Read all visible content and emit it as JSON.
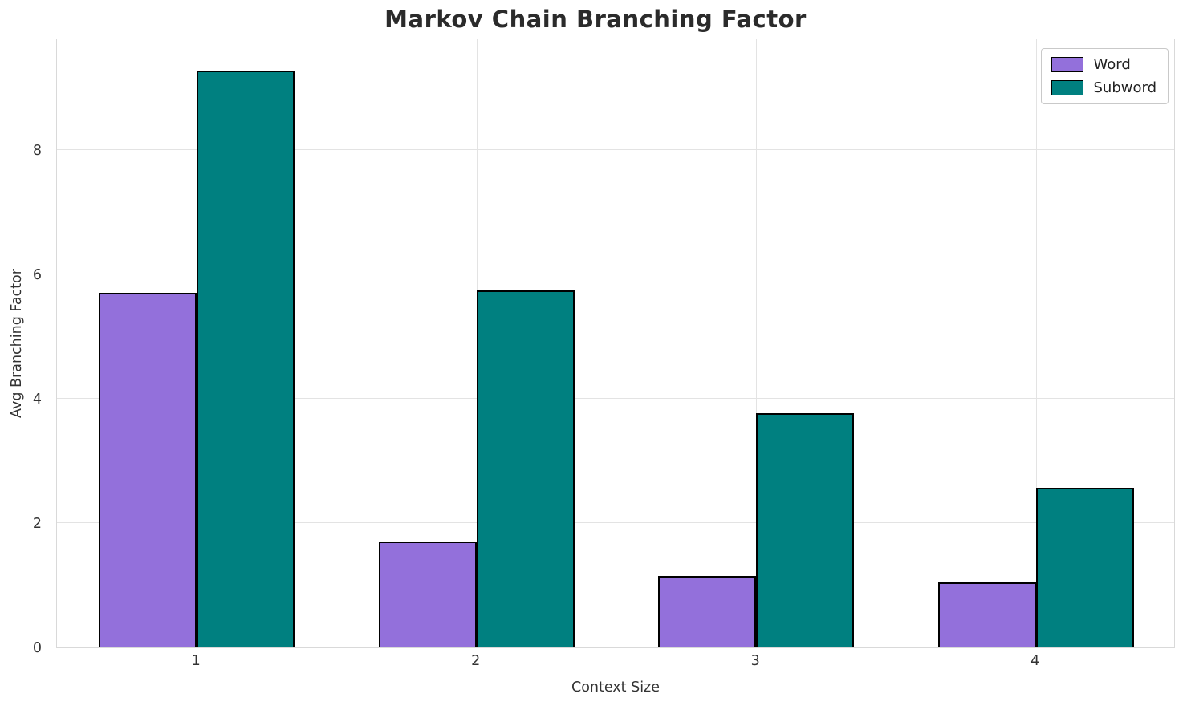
{
  "chart_data": {
    "type": "bar",
    "title": "Markov Chain Branching Factor",
    "xlabel": "Context Size",
    "ylabel": "Avg Branching Factor",
    "categories": [
      "1",
      "2",
      "3",
      "4"
    ],
    "series": [
      {
        "name": "Word",
        "color": "#9370DB",
        "values": [
          5.7,
          1.7,
          1.15,
          1.05
        ]
      },
      {
        "name": "Subword",
        "color": "#008080",
        "values": [
          9.27,
          5.74,
          3.77,
          2.57
        ]
      }
    ],
    "ylim": [
      0,
      9.8
    ],
    "yticks": [
      0,
      2,
      4,
      6,
      8
    ],
    "grid": true,
    "legend_position": "upper right",
    "bar_edge_color": "#000000",
    "bar_group_width_fraction": 0.7
  }
}
